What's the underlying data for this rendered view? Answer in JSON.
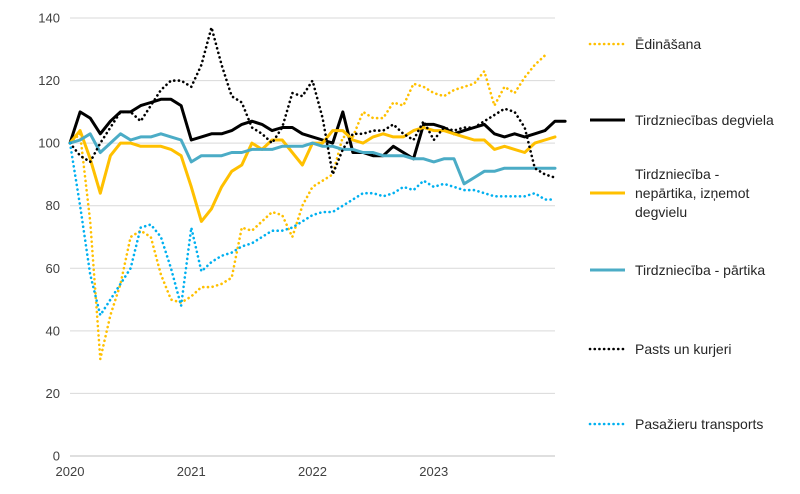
{
  "chart_data": {
    "type": "line",
    "title": "",
    "xlabel": "",
    "ylabel": "",
    "x_start": "2020-01",
    "x_end": "2023-12",
    "ylim": [
      0,
      140
    ],
    "y_ticks": [
      "0",
      "20",
      "40",
      "60",
      "80",
      "100",
      "120",
      "140"
    ],
    "x_tick_labels": [
      "2020",
      "2021",
      "2022",
      "2023"
    ],
    "grid": "horizontal",
    "legend_position": "right",
    "series": [
      {
        "name": "Ēdināšana",
        "color": "#FFC000",
        "style": "dotted",
        "values": [
          100,
          103,
          75,
          31,
          45,
          55,
          70,
          72,
          70,
          58,
          50,
          49,
          51,
          54,
          54,
          55,
          57,
          73,
          72,
          75,
          78,
          77,
          70,
          80,
          86,
          88,
          90,
          102,
          102,
          110,
          108,
          108,
          113,
          112,
          119,
          118,
          116,
          115,
          117,
          118,
          119,
          123,
          112,
          118,
          116,
          121,
          125,
          128
        ]
      },
      {
        "name": "Tirdzniecības degviela",
        "color": "#000000",
        "style": "solid",
        "values": [
          100,
          110,
          108,
          103,
          107,
          110,
          110,
          112,
          113,
          114,
          114,
          112,
          101,
          102,
          103,
          103,
          104,
          106,
          107,
          106,
          104,
          105,
          105,
          103,
          102,
          101,
          100,
          110,
          97,
          97,
          96,
          96,
          99,
          97,
          95,
          106,
          106,
          105,
          103,
          104,
          105,
          106,
          103,
          102,
          103,
          102,
          103,
          104,
          107,
          107
        ]
      },
      {
        "name": "Tirdzniecība - nepārtika, izņemot degvielu",
        "color": "#FFC000",
        "style": "solid",
        "values": [
          100,
          104,
          95,
          84,
          96,
          100,
          100,
          99,
          99,
          99,
          98,
          96,
          86,
          75,
          79,
          86,
          91,
          93,
          100,
          98,
          101,
          101,
          97,
          93,
          100,
          100,
          104,
          104,
          101,
          100,
          102,
          103,
          102,
          102,
          104,
          105,
          104,
          104,
          103,
          102,
          101,
          101,
          98,
          99,
          98,
          97,
          100,
          101,
          102
        ]
      },
      {
        "name": "Tirdzniecība - pārtika",
        "color": "#4BACC6",
        "style": "solid",
        "values": [
          100,
          101,
          103,
          97,
          100,
          103,
          101,
          102,
          102,
          103,
          102,
          101,
          94,
          96,
          96,
          96,
          97,
          97,
          98,
          98,
          98,
          99,
          99,
          99,
          100,
          99,
          99,
          98,
          98,
          97,
          97,
          96,
          96,
          96,
          95,
          95,
          94,
          95,
          95,
          87,
          89,
          91,
          91,
          92,
          92,
          92,
          92,
          92,
          92
        ]
      },
      {
        "name": "Pasts un kurjeri",
        "color": "#000000",
        "style": "dotted",
        "values": [
          100,
          96,
          94,
          100,
          105,
          110,
          110,
          107,
          112,
          117,
          120,
          120,
          118,
          125,
          137,
          125,
          115,
          113,
          105,
          103,
          100,
          105,
          116,
          115,
          120,
          108,
          90,
          98,
          103,
          103,
          104,
          104,
          106,
          103,
          101,
          107,
          101,
          105,
          104,
          105,
          105,
          107,
          109,
          111,
          110,
          105,
          92,
          90,
          89
        ]
      },
      {
        "name": "Pasažieru transports",
        "color": "#00B0F0",
        "style": "dotted",
        "values": [
          100,
          80,
          58,
          45,
          50,
          55,
          60,
          73,
          74,
          70,
          60,
          48,
          73,
          59,
          62,
          64,
          65,
          67,
          68,
          70,
          72,
          72,
          73,
          75,
          77,
          78,
          78,
          80,
          82,
          84,
          84,
          83,
          84,
          86,
          85,
          88,
          86,
          87,
          86,
          85,
          85,
          84,
          83,
          83,
          83,
          83,
          84,
          82,
          82
        ]
      }
    ],
    "legend_labels": [
      [
        "Ēdināšana"
      ],
      [
        "Tirdzniecības degviela"
      ],
      [
        "Tirdzniecība -",
        "nepārtika, izņemot",
        "degvielu"
      ],
      [
        "Tirdzniecība - pārtika"
      ],
      [
        "Pasts un kurjeri"
      ],
      [
        "Pasažieru transports"
      ]
    ]
  }
}
